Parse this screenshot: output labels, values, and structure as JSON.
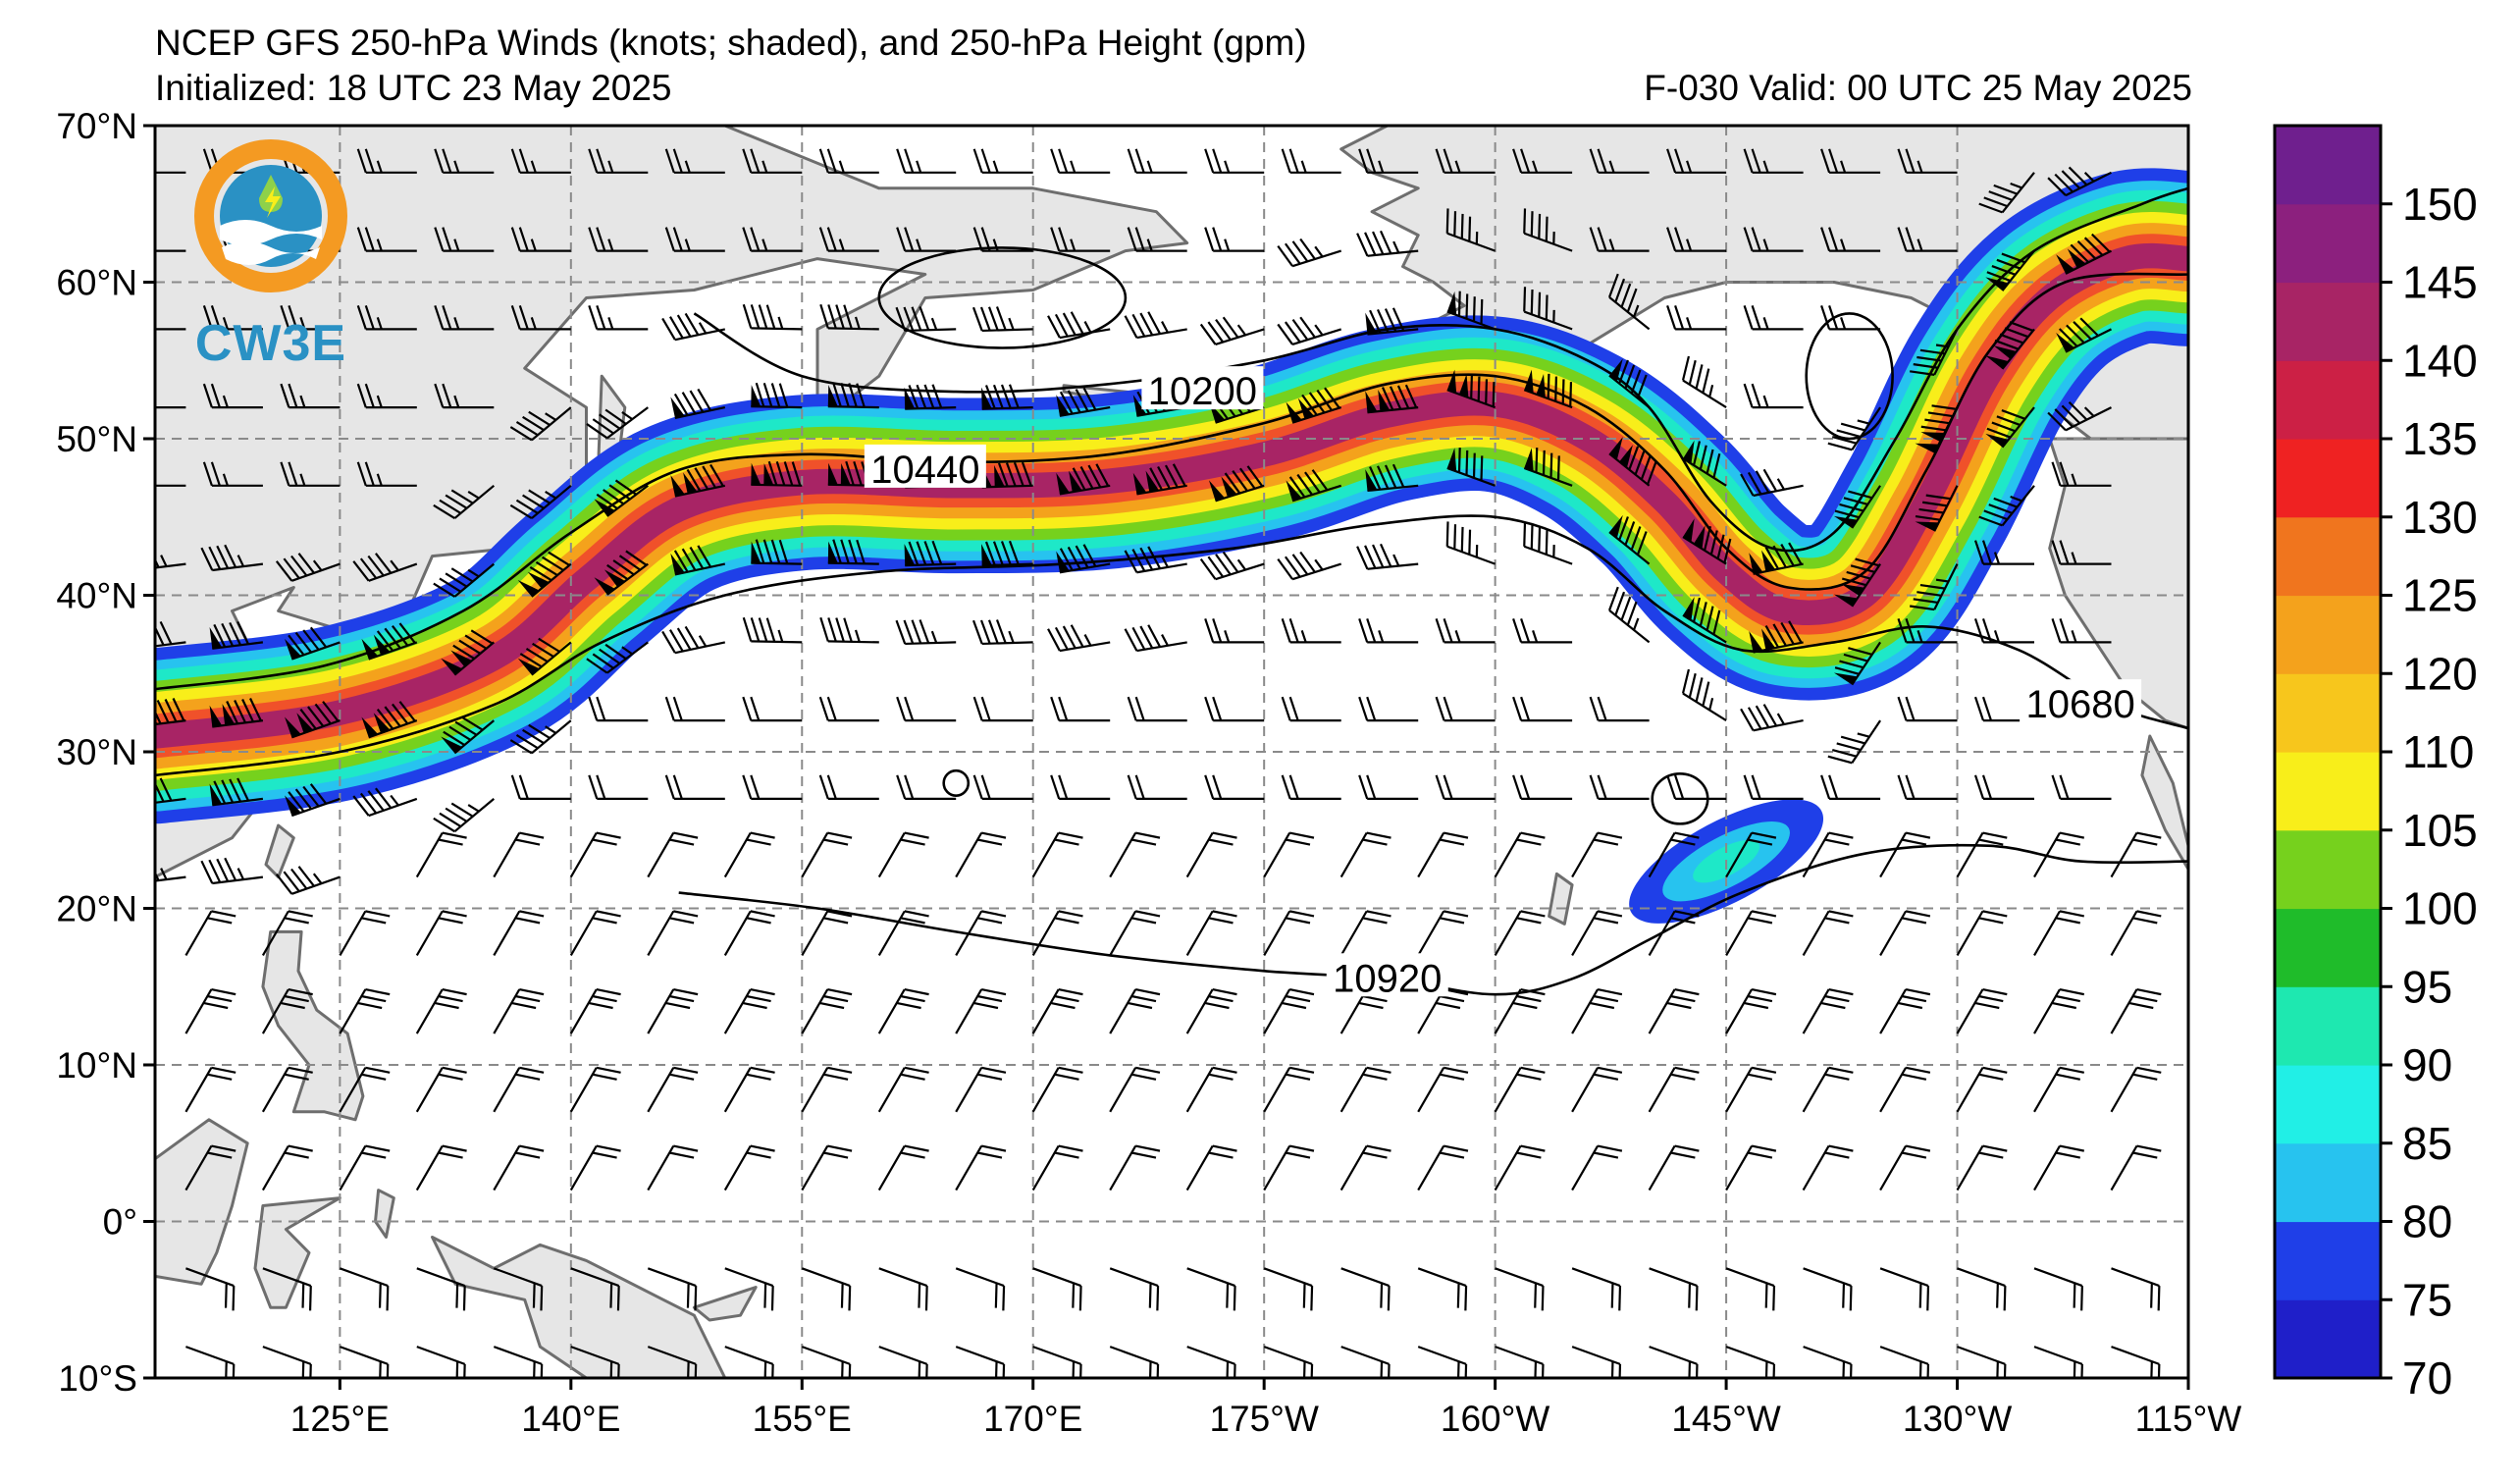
{
  "title": {
    "line1": "NCEP GFS 250-hPa Winds (knots; shaded), and 250-hPa Height (gpm)",
    "line2_left": "Initialized: 18 UTC 23 May 2025",
    "line2_right": "F-030  Valid: 00 UTC 25 May 2025"
  },
  "logo": {
    "text": "CW3E"
  },
  "map": {
    "projection": "PlateCarree",
    "lon_range": [
      113,
      245
    ],
    "lat_range": [
      -10,
      70
    ],
    "gridlines": true,
    "land_color": "#e6e6e6",
    "coast_color": "#6e6e6e",
    "x_ticks": [
      {
        "lon": 125,
        "label": "125°E"
      },
      {
        "lon": 140,
        "label": "140°E"
      },
      {
        "lon": 155,
        "label": "155°E"
      },
      {
        "lon": 170,
        "label": "170°E"
      },
      {
        "lon": 185,
        "label": "175°W"
      },
      {
        "lon": 200,
        "label": "160°W"
      },
      {
        "lon": 215,
        "label": "145°W"
      },
      {
        "lon": 230,
        "label": "130°W"
      },
      {
        "lon": 245,
        "label": "115°W"
      }
    ],
    "y_ticks": [
      {
        "lat": 70,
        "label": "70°N"
      },
      {
        "lat": 60,
        "label": "60°N"
      },
      {
        "lat": 50,
        "label": "50°N"
      },
      {
        "lat": 40,
        "label": "40°N"
      },
      {
        "lat": 30,
        "label": "30°N"
      },
      {
        "lat": 20,
        "label": "20°N"
      },
      {
        "lat": 10,
        "label": "10°N"
      },
      {
        "lat": 0,
        "label": "0°"
      },
      {
        "lat": -10,
        "label": "10°S"
      }
    ]
  },
  "jet": {
    "axis": [
      [
        113,
        31
      ],
      [
        125,
        32.5
      ],
      [
        135,
        36
      ],
      [
        141,
        41
      ],
      [
        147,
        45.5
      ],
      [
        155,
        47.2
      ],
      [
        165,
        47
      ],
      [
        175,
        47.3
      ],
      [
        185,
        49
      ],
      [
        193,
        51.5
      ],
      [
        200,
        52.2
      ],
      [
        206,
        50
      ],
      [
        211,
        46
      ],
      [
        215,
        41.5
      ],
      [
        219,
        39
      ],
      [
        224,
        40
      ],
      [
        228,
        46
      ],
      [
        232,
        54
      ],
      [
        236,
        59
      ],
      [
        241,
        61.5
      ],
      [
        245,
        61.5
      ]
    ],
    "profile": [
      {
        "speed": 75,
        "color": "#1f3fe8",
        "half_width_deg": 5.6
      },
      {
        "speed": 80,
        "color": "#27c3ef",
        "half_width_deg": 4.8
      },
      {
        "speed": 90,
        "color": "#1ee8c8",
        "half_width_deg": 4.2
      },
      {
        "speed": 100,
        "color": "#76d11d",
        "half_width_deg": 3.5
      },
      {
        "speed": 110,
        "color": "#f8ee1a",
        "half_width_deg": 2.8
      },
      {
        "speed": 120,
        "color": "#f4a21c",
        "half_width_deg": 2.1
      },
      {
        "speed": 130,
        "color": "#f0512a",
        "half_width_deg": 1.4
      },
      {
        "speed": 140,
        "color": "#a82465",
        "half_width_deg": 0.8
      }
    ],
    "secondary_max": [
      {
        "lon": 215,
        "lat": 23,
        "speed": 85
      }
    ]
  },
  "height_contours": [
    {
      "value": 10200,
      "label": "10200",
      "label_pos": [
        181,
        53
      ],
      "points": [
        [
          148,
          58
        ],
        [
          155,
          54
        ],
        [
          165,
          53
        ],
        [
          175,
          53.5
        ],
        [
          185,
          55
        ],
        [
          193,
          57
        ],
        [
          200,
          57
        ],
        [
          206,
          55
        ],
        [
          210,
          52
        ],
        [
          214,
          46
        ],
        [
          218,
          43
        ],
        [
          222,
          44
        ],
        [
          226,
          50
        ],
        [
          230,
          57
        ],
        [
          235,
          62
        ],
        [
          242,
          65
        ],
        [
          245,
          66
        ]
      ]
    },
    {
      "value": 10440,
      "label": "10440",
      "label_pos": [
        163,
        48
      ],
      "points": [
        [
          113,
          34
        ],
        [
          124,
          35.5
        ],
        [
          133,
          39
        ],
        [
          140,
          44
        ],
        [
          147,
          48
        ],
        [
          155,
          49
        ],
        [
          165,
          48.5
        ],
        [
          175,
          49
        ],
        [
          185,
          51
        ],
        [
          193,
          53.5
        ],
        [
          200,
          54
        ],
        [
          206,
          52
        ],
        [
          211,
          48
        ],
        [
          215,
          43
        ],
        [
          219,
          40.5
        ],
        [
          224,
          41.5
        ],
        [
          228,
          48
        ],
        [
          232,
          55.5
        ],
        [
          237,
          60
        ],
        [
          245,
          60.5
        ]
      ]
    },
    {
      "value": 10680,
      "label": "10680",
      "label_pos": [
        238,
        33
      ],
      "points": [
        [
          113,
          28.5
        ],
        [
          125,
          30
        ],
        [
          135,
          33
        ],
        [
          142,
          37
        ],
        [
          150,
          40
        ],
        [
          160,
          41.5
        ],
        [
          172,
          42
        ],
        [
          183,
          43
        ],
        [
          192,
          44.5
        ],
        [
          200,
          45
        ],
        [
          206,
          43
        ],
        [
          211,
          39
        ],
        [
          216,
          36.5
        ],
        [
          222,
          37
        ],
        [
          228,
          38
        ],
        [
          234,
          36.5
        ],
        [
          240,
          33
        ],
        [
          245,
          31.5
        ]
      ]
    },
    {
      "value": 10920,
      "label": "10920",
      "label_pos": [
        193,
        15.5
      ],
      "points": [
        [
          147,
          21
        ],
        [
          156,
          20
        ],
        [
          165,
          18.5
        ],
        [
          175,
          17
        ],
        [
          185,
          16
        ],
        [
          193,
          15.5
        ],
        [
          200,
          14.5
        ],
        [
          205,
          15.5
        ],
        [
          210,
          18
        ],
        [
          216,
          21
        ],
        [
          224,
          23.5
        ],
        [
          232,
          24
        ],
        [
          238,
          23
        ],
        [
          245,
          23
        ]
      ]
    }
  ],
  "height_extrema": [
    {
      "lon": 168,
      "lat": 59,
      "rx": 8,
      "ry": 3.2
    },
    {
      "lon": 223,
      "lat": 54,
      "rx": 2.8,
      "ry": 4
    },
    {
      "lon": 165,
      "lat": 28,
      "rx": 0.8,
      "ry": 0.8
    },
    {
      "lon": 212,
      "lat": 27,
      "rx": 1.8,
      "ry": 1.6
    }
  ],
  "land": [
    {
      "name": "asia",
      "points": [
        [
          113,
          70
        ],
        [
          150,
          70
        ],
        [
          160,
          66
        ],
        [
          170,
          66
        ],
        [
          178,
          64.5
        ],
        [
          180,
          62.5
        ],
        [
          176,
          62
        ],
        [
          170,
          59.5
        ],
        [
          163,
          59
        ],
        [
          160,
          54
        ],
        [
          156,
          51
        ],
        [
          156,
          57
        ],
        [
          163,
          60.5
        ],
        [
          156,
          61.5
        ],
        [
          148,
          59.5
        ],
        [
          141,
          59
        ],
        [
          137,
          54.5
        ],
        [
          141,
          52
        ],
        [
          141,
          48
        ],
        [
          136,
          43
        ],
        [
          131,
          42.5
        ],
        [
          129,
          38
        ],
        [
          127,
          35
        ],
        [
          126,
          37.5
        ],
        [
          121,
          39
        ],
        [
          122,
          40.5
        ],
        [
          118,
          39
        ],
        [
          119,
          37
        ],
        [
          122,
          37
        ],
        [
          121,
          35
        ],
        [
          120,
          32
        ],
        [
          122,
          30
        ],
        [
          120,
          27
        ],
        [
          118,
          24.5
        ],
        [
          113,
          22
        ],
        [
          113,
          70
        ]
      ]
    },
    {
      "name": "japan",
      "points": [
        [
          140,
          45.5
        ],
        [
          145,
          44
        ],
        [
          142,
          42
        ],
        [
          141.5,
          40
        ],
        [
          141,
          37
        ],
        [
          139.8,
          35
        ],
        [
          136.5,
          34
        ],
        [
          133,
          33.5
        ],
        [
          130.5,
          31.5
        ],
        [
          130,
          33.5
        ],
        [
          131.5,
          34.5
        ],
        [
          135,
          35.5
        ],
        [
          137,
          37
        ],
        [
          140,
          40
        ],
        [
          140,
          45.5
        ]
      ]
    },
    {
      "name": "sakhalin",
      "points": [
        [
          142,
          54
        ],
        [
          143.5,
          52
        ],
        [
          143,
          48
        ],
        [
          142,
          46
        ],
        [
          141.8,
          49
        ],
        [
          142,
          54
        ]
      ]
    },
    {
      "name": "taiwan",
      "points": [
        [
          121,
          25.3
        ],
        [
          122,
          24.5
        ],
        [
          121,
          22
        ],
        [
          120.2,
          22.8
        ],
        [
          121,
          25.3
        ]
      ]
    },
    {
      "name": "philippines",
      "points": [
        [
          120.5,
          18.5
        ],
        [
          122.5,
          18.5
        ],
        [
          122.3,
          16
        ],
        [
          123.5,
          13.5
        ],
        [
          125.5,
          12
        ],
        [
          126.5,
          8
        ],
        [
          126,
          6.5
        ],
        [
          124,
          7
        ],
        [
          122,
          7
        ],
        [
          123,
          10
        ],
        [
          121,
          12.5
        ],
        [
          120,
          15
        ],
        [
          120.5,
          18.5
        ]
      ]
    },
    {
      "name": "borneo",
      "points": [
        [
          113,
          4
        ],
        [
          116.5,
          6.5
        ],
        [
          119,
          5
        ],
        [
          118,
          1
        ],
        [
          117,
          -2
        ],
        [
          116,
          -4
        ],
        [
          113,
          -3.5
        ],
        [
          113,
          4
        ]
      ]
    },
    {
      "name": "sulawesi",
      "points": [
        [
          120,
          1
        ],
        [
          125,
          1.5
        ],
        [
          121.5,
          -0.5
        ],
        [
          123,
          -2
        ],
        [
          121.5,
          -5.5
        ],
        [
          120.5,
          -5.5
        ],
        [
          119.5,
          -3
        ],
        [
          120,
          1
        ]
      ]
    },
    {
      "name": "halmahera",
      "points": [
        [
          127.5,
          2
        ],
        [
          128.5,
          1.5
        ],
        [
          128,
          -1
        ],
        [
          127.3,
          0
        ],
        [
          127.5,
          2
        ]
      ]
    },
    {
      "name": "new-guinea",
      "points": [
        [
          131,
          -1
        ],
        [
          135,
          -3
        ],
        [
          138,
          -1.5
        ],
        [
          141,
          -2.5
        ],
        [
          146,
          -5
        ],
        [
          148,
          -6
        ],
        [
          150,
          -10
        ],
        [
          141,
          -10
        ],
        [
          138,
          -8
        ],
        [
          137,
          -5
        ],
        [
          132.5,
          -4
        ],
        [
          131,
          -1
        ]
      ]
    },
    {
      "name": "new-britain",
      "points": [
        [
          148,
          -5.5
        ],
        [
          152,
          -4.2
        ],
        [
          151,
          -6
        ],
        [
          149,
          -6.3
        ],
        [
          148,
          -5.5
        ]
      ]
    },
    {
      "name": "alaska",
      "points": [
        [
          157,
          70
        ],
        [
          245,
          70
        ],
        [
          245,
          50
        ],
        [
          240,
          49
        ],
        [
          236,
          52
        ],
        [
          231,
          57
        ],
        [
          227,
          59
        ],
        [
          222,
          60
        ],
        [
          215,
          60
        ],
        [
          211,
          59
        ],
        [
          206,
          56
        ],
        [
          197,
          55
        ],
        [
          195,
          57
        ],
        [
          198,
          58.5
        ],
        [
          196,
          60
        ],
        [
          194,
          61
        ],
        [
          195,
          63
        ],
        [
          192,
          64.5
        ],
        [
          195,
          66
        ],
        [
          192,
          67
        ],
        [
          190,
          68.5
        ],
        [
          193,
          70
        ]
      ]
    },
    {
      "name": "aleutians",
      "points": [
        [
          172,
          53
        ],
        [
          178,
          52
        ],
        [
          185,
          51.5
        ],
        [
          190,
          52.5
        ],
        [
          195,
          53.5
        ],
        [
          196,
          54
        ],
        [
          190,
          53
        ],
        [
          185,
          52.2
        ],
        [
          178,
          52.8
        ],
        [
          172,
          53.4
        ],
        [
          172,
          53
        ]
      ]
    },
    {
      "name": "na-west",
      "points": [
        [
          236,
          50
        ],
        [
          237,
          47
        ],
        [
          236,
          43
        ],
        [
          237,
          40
        ],
        [
          239,
          37
        ],
        [
          241,
          34
        ],
        [
          243.5,
          32
        ],
        [
          245,
          31.5
        ],
        [
          245,
          50
        ],
        [
          236,
          50
        ]
      ]
    },
    {
      "name": "baja",
      "points": [
        [
          242.5,
          31
        ],
        [
          244,
          28
        ],
        [
          245,
          24
        ],
        [
          245,
          22.5
        ],
        [
          243.5,
          25
        ],
        [
          242,
          28.5
        ],
        [
          242.5,
          31
        ]
      ]
    },
    {
      "name": "hawaii",
      "points": [
        [
          204,
          22.2
        ],
        [
          205,
          21.5
        ],
        [
          204.5,
          19
        ],
        [
          203.5,
          19.5
        ],
        [
          204,
          22.2
        ]
      ]
    }
  ],
  "wind_barbs_sample_spacing_deg": 5
}
